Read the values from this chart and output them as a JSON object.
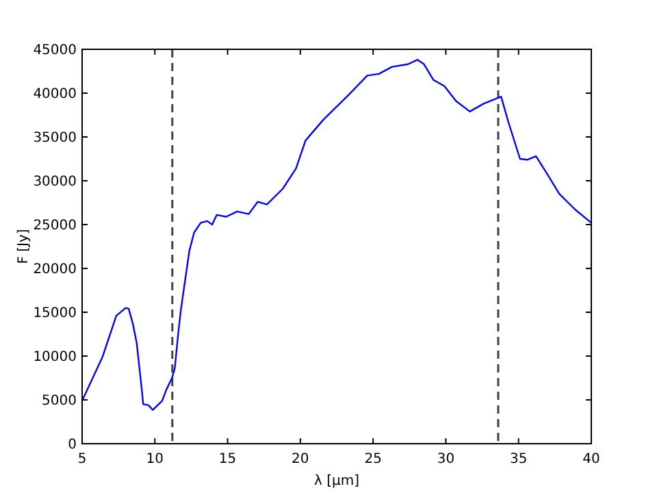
{
  "chart_data": {
    "type": "line",
    "xlabel": "λ [μm]",
    "ylabel": "F [Jy]",
    "xlim": [
      5,
      40
    ],
    "ylim": [
      0,
      45000
    ],
    "xticks": [
      5,
      10,
      15,
      20,
      25,
      30,
      35,
      40
    ],
    "yticks": [
      0,
      5000,
      10000,
      15000,
      20000,
      25000,
      30000,
      35000,
      40000,
      45000
    ],
    "grid": false,
    "line_style": "solid",
    "marker": "none",
    "ref_lines": [
      {
        "axis": "x",
        "value": 11.2,
        "color": "#404040",
        "line_style": "dashed"
      },
      {
        "axis": "x",
        "value": 33.6,
        "color": "#404040",
        "line_style": "dashed"
      }
    ],
    "series": [
      {
        "color": "#0000ff",
        "x": [
          5,
          6.4,
          7.35,
          8.0,
          8.2,
          8.5,
          8.75,
          9.1,
          9.2,
          9.55,
          9.86,
          10.2,
          10.5,
          10.8,
          11.18,
          11.37,
          11.6,
          11.8,
          12.05,
          12.37,
          12.7,
          13.15,
          13.6,
          13.94,
          14.25,
          14.9,
          15.66,
          16.45,
          17.07,
          17.7,
          18.8,
          19.7,
          20.36,
          21.6,
          23.2,
          24.6,
          25.4,
          26.3,
          27.4,
          28.05,
          28.5,
          29.15,
          29.9,
          30.7,
          31.65,
          32.6,
          33.8,
          34.3,
          35.1,
          35.6,
          36.2,
          37.0,
          37.8,
          38.9,
          40
        ],
        "values": [
          4900,
          9900,
          14600,
          15500,
          15400,
          13600,
          11500,
          6200,
          4500,
          4400,
          3850,
          4400,
          4900,
          6200,
          7500,
          8600,
          12500,
          15400,
          18300,
          22000,
          24100,
          25200,
          25400,
          25000,
          26100,
          25900,
          26500,
          26200,
          27600,
          27300,
          29100,
          31400,
          34600,
          37000,
          39600,
          42000,
          42200,
          43000,
          43300,
          43800,
          43300,
          41500,
          40800,
          39100,
          37900,
          38800,
          39600,
          36700,
          32500,
          32400,
          32800,
          30700,
          28500,
          26700,
          25200
        ]
      }
    ]
  }
}
